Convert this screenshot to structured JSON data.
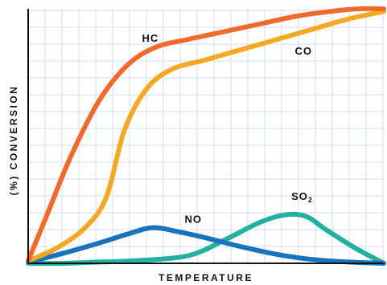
{
  "chart_data": {
    "type": "line",
    "xlabel": "TEMPERATURE",
    "ylabel": "(%) CONVERSION",
    "xlim": [
      0,
      100
    ],
    "ylim": [
      0,
      100
    ],
    "grid": true,
    "x_ticks_labeled": false,
    "y_ticks_labeled": false,
    "series": [
      {
        "name": "HC",
        "color": "#ef6a2b",
        "points": [
          [
            0,
            1
          ],
          [
            5,
            18
          ],
          [
            12,
            42
          ],
          [
            20,
            64
          ],
          [
            28,
            78
          ],
          [
            36,
            85
          ],
          [
            45,
            88
          ],
          [
            55,
            91
          ],
          [
            65,
            94
          ],
          [
            75,
            97
          ],
          [
            85,
            99
          ],
          [
            93,
            100
          ],
          [
            100,
            100
          ]
        ]
      },
      {
        "name": "CO",
        "color": "#f7a823",
        "points": [
          [
            0,
            1
          ],
          [
            8,
            6
          ],
          [
            16,
            14
          ],
          [
            22,
            26
          ],
          [
            27,
            52
          ],
          [
            33,
            68
          ],
          [
            40,
            76
          ],
          [
            50,
            80
          ],
          [
            60,
            84
          ],
          [
            70,
            88
          ],
          [
            80,
            92
          ],
          [
            90,
            96
          ],
          [
            100,
            99
          ]
        ]
      },
      {
        "name": "NO",
        "color": "#1873bd",
        "points": [
          [
            0,
            0.5
          ],
          [
            10,
            4
          ],
          [
            20,
            8
          ],
          [
            28,
            11.5
          ],
          [
            35,
            14
          ],
          [
            42,
            12.5
          ],
          [
            50,
            10
          ],
          [
            60,
            6.5
          ],
          [
            70,
            3.5
          ],
          [
            80,
            1.5
          ],
          [
            90,
            0.5
          ],
          [
            100,
            0
          ]
        ]
      },
      {
        "name": "SO",
        "name_subscript": "2",
        "color": "#21b0a2",
        "points": [
          [
            0,
            0
          ],
          [
            10,
            0
          ],
          [
            20,
            0.5
          ],
          [
            30,
            1
          ],
          [
            45,
            3
          ],
          [
            55,
            9
          ],
          [
            65,
            16
          ],
          [
            72,
            19
          ],
          [
            78,
            18.5
          ],
          [
            84,
            13
          ],
          [
            92,
            6
          ],
          [
            100,
            0
          ]
        ]
      }
    ],
    "label_positions": {
      "HC": [
        32,
        87
      ],
      "CO": [
        75,
        82
      ],
      "NO": [
        44,
        16
      ],
      "SO2": [
        74,
        25
      ]
    }
  }
}
